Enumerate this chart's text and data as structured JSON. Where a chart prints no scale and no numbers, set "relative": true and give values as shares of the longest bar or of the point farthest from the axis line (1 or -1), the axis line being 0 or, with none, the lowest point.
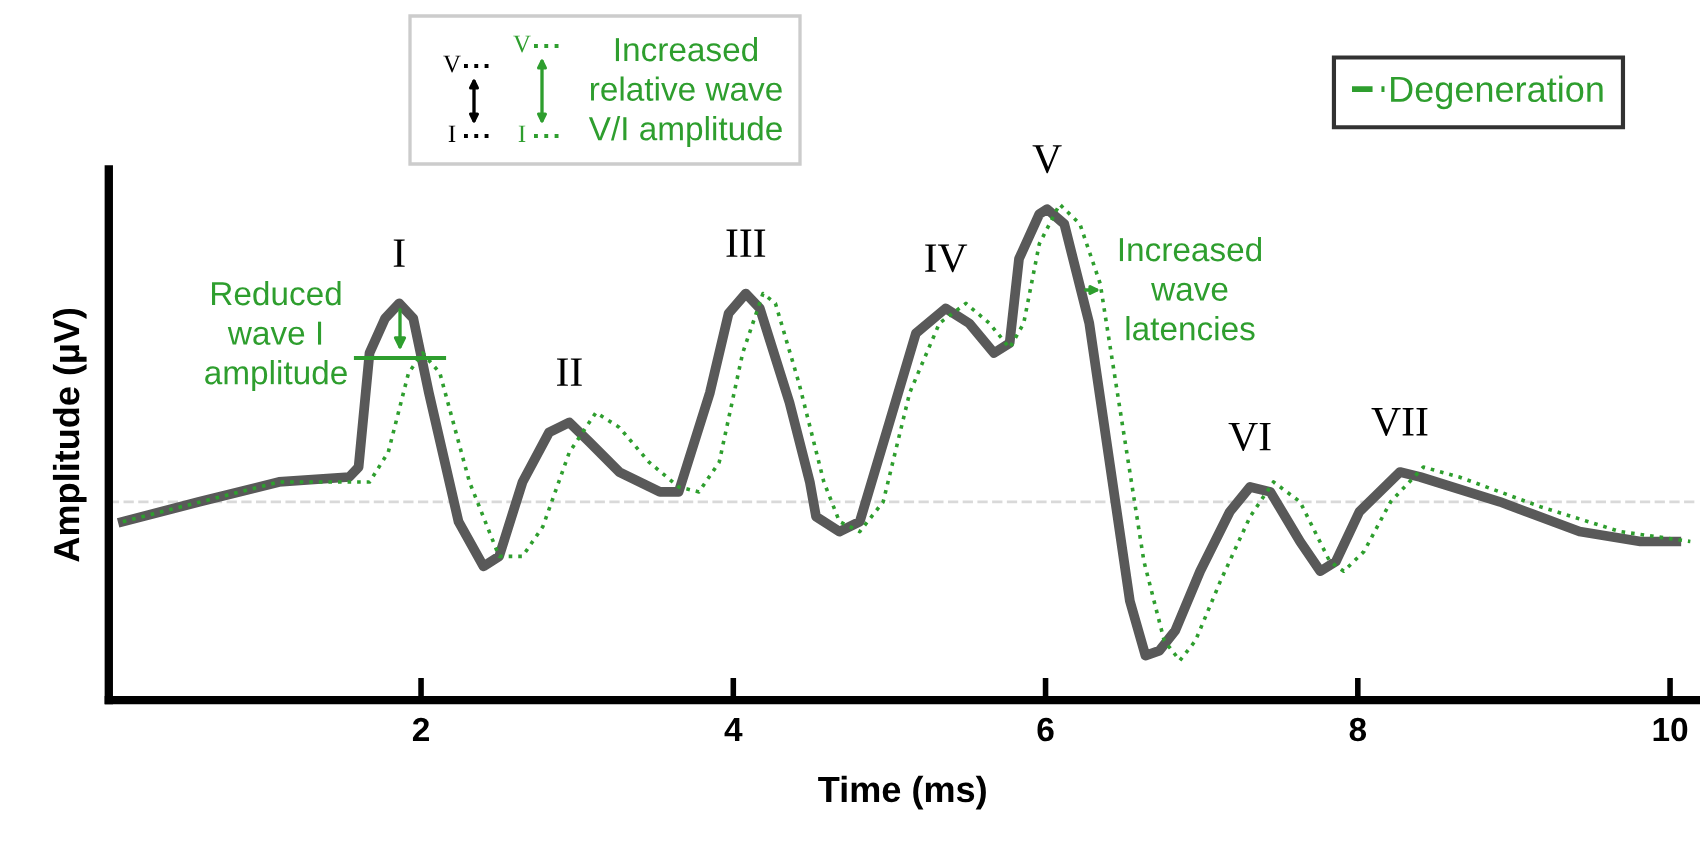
{
  "chart_data": {
    "type": "line",
    "relative": true,
    "xlabel": "Time (ms)",
    "ylabel": "Amplitude (µV)",
    "xlim": [
      0,
      10.17
    ],
    "xticks": [
      2,
      4,
      6,
      8,
      10
    ],
    "tick_labels": "x",
    "grid": false,
    "legend": "top right",
    "series": [
      {
        "color": "#595959",
        "line_style": "solid",
        "x": [
          0.09,
          0.58,
          1.09,
          1.54,
          1.6,
          1.67,
          1.77,
          1.86,
          1.95,
          2.05,
          2.24,
          2.4,
          2.5,
          2.65,
          2.82,
          2.95,
          3.08,
          3.27,
          3.53,
          3.65,
          3.85,
          3.97,
          4.08,
          4.17,
          4.36,
          4.49,
          4.53,
          4.68,
          4.81,
          5.0,
          5.17,
          5.36,
          5.51,
          5.67,
          5.77,
          5.83,
          5.96,
          6.01,
          6.12,
          6.28,
          6.41,
          6.54,
          6.64,
          6.73,
          6.83,
          6.99,
          7.18,
          7.31,
          7.44,
          7.63,
          7.76,
          7.86,
          8.01,
          8.27,
          8.4,
          8.91,
          9.42,
          9.81,
          10.04
        ],
        "values": [
          0.36,
          0.4,
          0.44,
          0.45,
          0.47,
          0.7,
          0.77,
          0.8,
          0.77,
          0.62,
          0.36,
          0.27,
          0.29,
          0.44,
          0.54,
          0.56,
          0.52,
          0.46,
          0.42,
          0.42,
          0.62,
          0.78,
          0.82,
          0.79,
          0.6,
          0.44,
          0.37,
          0.34,
          0.36,
          0.56,
          0.74,
          0.79,
          0.76,
          0.7,
          0.72,
          0.89,
          0.98,
          0.99,
          0.96,
          0.76,
          0.48,
          0.2,
          0.09,
          0.1,
          0.14,
          0.26,
          0.38,
          0.43,
          0.42,
          0.32,
          0.26,
          0.28,
          0.38,
          0.46,
          0.45,
          0.4,
          0.34,
          0.32,
          0.32
        ]
      },
      {
        "name": "Degeneration",
        "color": "#2e9e2e",
        "line_style": "dotted",
        "x": [
          0.09,
          1.09,
          1.67,
          1.79,
          1.92,
          2.01,
          2.12,
          2.31,
          2.5,
          2.65,
          2.78,
          2.95,
          3.12,
          3.27,
          3.46,
          3.65,
          3.78,
          3.91,
          4.06,
          4.19,
          4.27,
          4.42,
          4.58,
          4.68,
          4.81,
          4.96,
          5.13,
          5.32,
          5.49,
          5.64,
          5.77,
          5.86,
          5.96,
          6.09,
          6.22,
          6.35,
          6.47,
          6.63,
          6.76,
          6.86,
          6.96,
          7.12,
          7.31,
          7.46,
          7.63,
          7.82,
          7.91,
          8.04,
          8.21,
          8.42,
          8.65,
          9.17,
          9.68,
          10.13
        ],
        "values": [
          0.36,
          0.44,
          0.44,
          0.5,
          0.66,
          0.7,
          0.66,
          0.44,
          0.29,
          0.29,
          0.35,
          0.5,
          0.58,
          0.55,
          0.48,
          0.43,
          0.42,
          0.48,
          0.7,
          0.82,
          0.8,
          0.64,
          0.44,
          0.36,
          0.34,
          0.4,
          0.62,
          0.76,
          0.8,
          0.76,
          0.71,
          0.76,
          0.92,
          1.0,
          0.96,
          0.84,
          0.6,
          0.28,
          0.12,
          0.08,
          0.12,
          0.24,
          0.37,
          0.44,
          0.4,
          0.28,
          0.26,
          0.3,
          0.4,
          0.47,
          0.45,
          0.39,
          0.34,
          0.32
        ]
      }
    ],
    "ref_lines": [
      {
        "axis": "y",
        "value": 0.4,
        "color": "#d9d9d9",
        "line_style": "dashed"
      }
    ],
    "annotations": [
      {
        "text": "I",
        "x": 1.86,
        "y": 0.8
      },
      {
        "text": "II",
        "x": 2.95,
        "y": 0.56
      },
      {
        "text": "III",
        "x": 4.08,
        "y": 0.82
      },
      {
        "text": "IV",
        "x": 5.36,
        "y": 0.79
      },
      {
        "text": "V",
        "x": 6.01,
        "y": 0.99
      },
      {
        "text": "VI",
        "x": 7.31,
        "y": 0.43
      },
      {
        "text": "VII",
        "x": 8.27,
        "y": 0.46
      },
      "Reduced\nwave I\namplitude",
      "Increased\nwave\nlatencies",
      "Increased\nrelative wave\nV/I amplitude",
      "V",
      "I",
      "V",
      "I"
    ]
  }
}
